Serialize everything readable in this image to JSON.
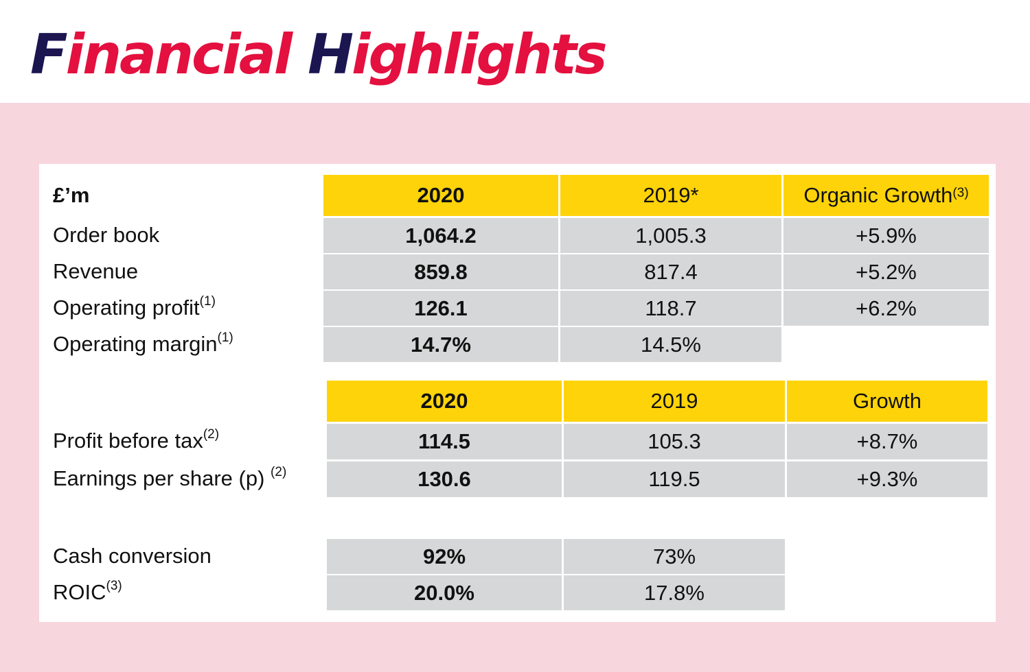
{
  "title": {
    "part1": "F",
    "part2": "inancial ",
    "part3": "H",
    "part4": "ighlights"
  },
  "unit_label": "£’m",
  "table1": {
    "headers": [
      "2020",
      "2019*",
      "Organic Growth"
    ],
    "header_sup": "(3)",
    "rows": [
      {
        "label": "Order book",
        "sup": "",
        "values": [
          "1,064.2",
          "1,005.3",
          "+5.9%"
        ]
      },
      {
        "label": "Revenue",
        "sup": "",
        "values": [
          "859.8",
          "817.4",
          "+5.2%"
        ]
      },
      {
        "label": "Operating profit",
        "sup": "(1)",
        "values": [
          "126.1",
          "118.7",
          "+6.2%"
        ]
      },
      {
        "label": "Operating margin",
        "sup": "(1)",
        "values": [
          "14.7%",
          "14.5%"
        ]
      }
    ]
  },
  "table2": {
    "headers": [
      "2020",
      "2019",
      "Growth"
    ],
    "rows": [
      {
        "label": "Profit before tax",
        "sup": "(2)",
        "values": [
          "114.5",
          "105.3",
          "+8.7%"
        ]
      },
      {
        "label": "Earnings per share (p) ",
        "sup": "(2)",
        "values": [
          "130.6",
          "119.5",
          "+9.3%"
        ]
      }
    ]
  },
  "table3": {
    "rows": [
      {
        "label": "Cash conversion",
        "sup": "",
        "values": [
          "92%",
          "73%"
        ]
      },
      {
        "label": "ROIC",
        "sup": "(3)",
        "values": [
          "20.0%",
          "17.8%"
        ]
      }
    ]
  },
  "colors": {
    "navy": "#1b1550",
    "red": "#e4103f",
    "pink": "#f8d6dd",
    "yellow": "#fed309",
    "grey": "#d6d7d8"
  }
}
